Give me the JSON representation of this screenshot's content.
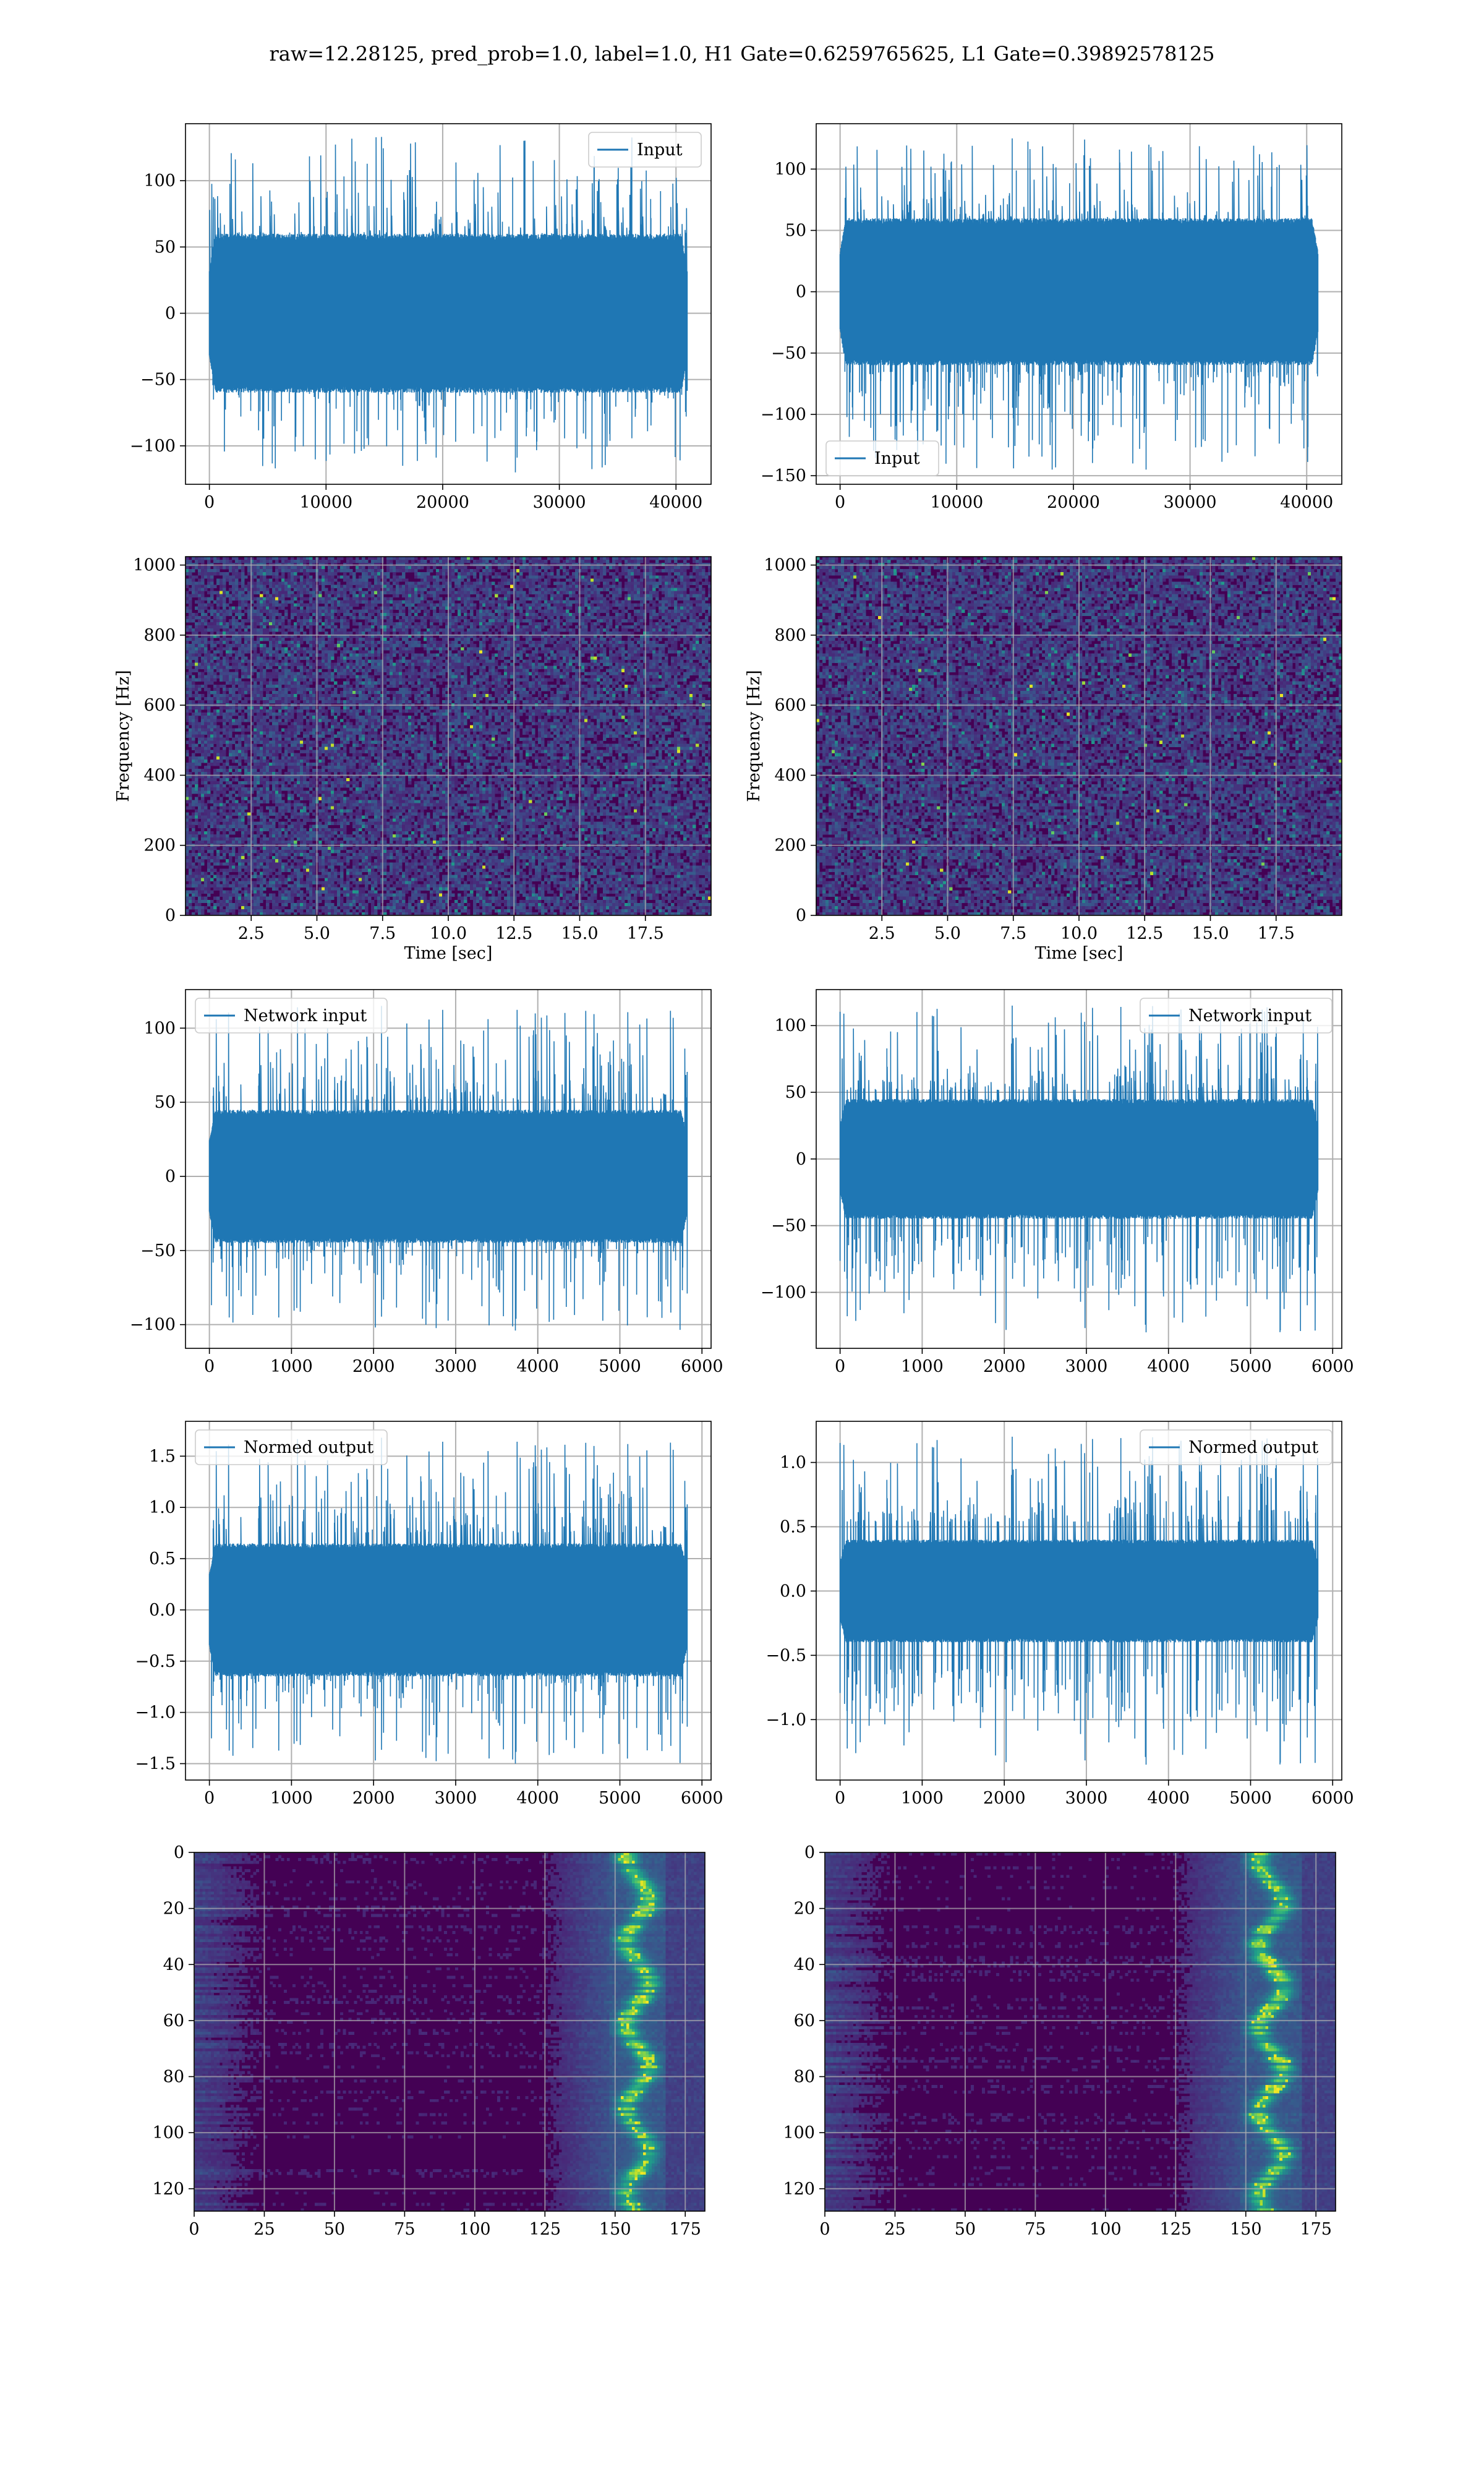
{
  "figure": {
    "suptitle": "raw=12.28125, pred_prob=1.0, label=1.0, H1 Gate=0.6259765625, L1 Gate=0.39892578125"
  },
  "chart_data": [
    {
      "id": "h1-input",
      "type": "line",
      "series": [
        {
          "name": "Input",
          "color": "#1f77b4",
          "x_range": [
            0,
            40960
          ],
          "y_envelope": [
            -60,
            60
          ],
          "y_peaks": [
            -120,
            133
          ],
          "points": 1400,
          "seed": 11
        }
      ],
      "xlim": [
        -2048,
        43008
      ],
      "ylim": [
        -129,
        143
      ],
      "xticks": [
        0,
        10000,
        20000,
        30000,
        40000
      ],
      "xticklabels": [
        "0",
        "10000",
        "20000",
        "30000",
        "40000"
      ],
      "yticks": [
        -100,
        -50,
        0,
        50,
        100
      ],
      "yticklabels": [
        "−100",
        "−50",
        "0",
        "50",
        "100"
      ],
      "legend": "top-right",
      "grid": true,
      "xlabel": "",
      "ylabel": ""
    },
    {
      "id": "l1-input",
      "type": "line",
      "series": [
        {
          "name": "Input",
          "color": "#1f77b4",
          "x_range": [
            0,
            40960
          ],
          "y_envelope": [
            -60,
            60
          ],
          "y_peaks": [
            -145,
            125
          ],
          "points": 1400,
          "seed": 23
        }
      ],
      "xlim": [
        -2048,
        43008
      ],
      "ylim": [
        -157,
        137
      ],
      "xticks": [
        0,
        10000,
        20000,
        30000,
        40000
      ],
      "xticklabels": [
        "0",
        "10000",
        "20000",
        "30000",
        "40000"
      ],
      "yticks": [
        -150,
        -100,
        -50,
        0,
        50,
        100
      ],
      "yticklabels": [
        "−150",
        "−100",
        "−50",
        "0",
        "50",
        "100"
      ],
      "legend": "bottom-left",
      "grid": true,
      "xlabel": "",
      "ylabel": ""
    },
    {
      "id": "h1-spectrogram",
      "type": "heatmap",
      "colormap": "viridis",
      "xlim": [
        0,
        20
      ],
      "ylim": [
        0,
        1024
      ],
      "xticks": [
        2.5,
        5.0,
        7.5,
        10.0,
        12.5,
        15.0,
        17.5
      ],
      "xticklabels": [
        "2.5",
        "5.0",
        "7.5",
        "10.0",
        "12.5",
        "15.0",
        "17.5"
      ],
      "yticks": [
        0,
        200,
        400,
        600,
        800,
        1000
      ],
      "yticklabels": [
        "0",
        "200",
        "400",
        "600",
        "800",
        "1000"
      ],
      "grid": true,
      "xlabel": "Time [sec]",
      "ylabel": "Frequency [Hz]",
      "seed": 31
    },
    {
      "id": "l1-spectrogram",
      "type": "heatmap",
      "colormap": "viridis",
      "xlim": [
        0,
        20
      ],
      "ylim": [
        0,
        1024
      ],
      "xticks": [
        2.5,
        5.0,
        7.5,
        10.0,
        12.5,
        15.0,
        17.5
      ],
      "xticklabels": [
        "2.5",
        "5.0",
        "7.5",
        "10.0",
        "12.5",
        "15.0",
        "17.5"
      ],
      "yticks": [
        0,
        200,
        400,
        600,
        800,
        1000
      ],
      "yticklabels": [
        "0",
        "200",
        "400",
        "600",
        "800",
        "1000"
      ],
      "grid": true,
      "xlabel": "Time [sec]",
      "ylabel": "Frequency [Hz]",
      "seed": 37
    },
    {
      "id": "h1-network-input",
      "type": "line",
      "series": [
        {
          "name": "Network input",
          "color": "#1f77b4",
          "x_range": [
            0,
            5820
          ],
          "y_envelope": [
            -45,
            45
          ],
          "y_peaks": [
            -104,
            115
          ],
          "points": 1400,
          "seed": 41
        }
      ],
      "xlim": [
        -291,
        6111
      ],
      "ylim": [
        -116,
        126
      ],
      "xticks": [
        0,
        1000,
        2000,
        3000,
        4000,
        5000,
        6000
      ],
      "xticklabels": [
        "0",
        "1000",
        "2000",
        "3000",
        "4000",
        "5000",
        "6000"
      ],
      "yticks": [
        -100,
        -50,
        0,
        50,
        100
      ],
      "yticklabels": [
        "−100",
        "−50",
        "0",
        "50",
        "100"
      ],
      "legend": "top-left",
      "grid": true,
      "xlabel": "",
      "ylabel": ""
    },
    {
      "id": "l1-network-input",
      "type": "line",
      "series": [
        {
          "name": "Network input",
          "color": "#1f77b4",
          "x_range": [
            0,
            5820
          ],
          "y_envelope": [
            -45,
            45
          ],
          "y_peaks": [
            -130,
            115
          ],
          "points": 1400,
          "seed": 53
        }
      ],
      "xlim": [
        -291,
        6111
      ],
      "ylim": [
        -142,
        127
      ],
      "xticks": [
        0,
        1000,
        2000,
        3000,
        4000,
        5000,
        6000
      ],
      "xticklabels": [
        "0",
        "1000",
        "2000",
        "3000",
        "4000",
        "5000",
        "6000"
      ],
      "yticks": [
        -100,
        -50,
        0,
        50,
        100
      ],
      "yticklabels": [
        "−100",
        "−50",
        "0",
        "50",
        "100"
      ],
      "legend": "top-right",
      "grid": true,
      "xlabel": "",
      "ylabel": ""
    },
    {
      "id": "h1-normed-output",
      "type": "line",
      "series": [
        {
          "name": "Normed output",
          "color": "#1f77b4",
          "x_range": [
            0,
            5820
          ],
          "y_envelope": [
            -0.65,
            0.65
          ],
          "y_peaks": [
            -1.5,
            1.68
          ],
          "points": 1400,
          "seed": 41
        }
      ],
      "xlim": [
        -291,
        6111
      ],
      "ylim": [
        -1.66,
        1.84
      ],
      "xticks": [
        0,
        1000,
        2000,
        3000,
        4000,
        5000,
        6000
      ],
      "xticklabels": [
        "0",
        "1000",
        "2000",
        "3000",
        "4000",
        "5000",
        "6000"
      ],
      "yticks": [
        -1.5,
        -1.0,
        -0.5,
        0.0,
        0.5,
        1.0,
        1.5
      ],
      "yticklabels": [
        "−1.5",
        "−1.0",
        "−0.5",
        "0.0",
        "0.5",
        "1.0",
        "1.5"
      ],
      "legend": "top-left",
      "grid": true,
      "xlabel": "",
      "ylabel": ""
    },
    {
      "id": "l1-normed-output",
      "type": "line",
      "series": [
        {
          "name": "Normed output",
          "color": "#1f77b4",
          "x_range": [
            0,
            5820
          ],
          "y_envelope": [
            -0.4,
            0.4
          ],
          "y_peaks": [
            -1.35,
            1.2
          ],
          "points": 1400,
          "seed": 53
        }
      ],
      "xlim": [
        -291,
        6111
      ],
      "ylim": [
        -1.47,
        1.32
      ],
      "xticks": [
        0,
        1000,
        2000,
        3000,
        4000,
        5000,
        6000
      ],
      "xticklabels": [
        "0",
        "1000",
        "2000",
        "3000",
        "4000",
        "5000",
        "6000"
      ],
      "yticks": [
        -1.0,
        -0.5,
        0.0,
        0.5,
        1.0
      ],
      "yticklabels": [
        "−1.0",
        "−0.5",
        "0.0",
        "0.5",
        "1.0"
      ],
      "legend": "top-right",
      "grid": true,
      "xlabel": "",
      "ylabel": ""
    },
    {
      "id": "h1-feature-map",
      "type": "heatmap",
      "colormap": "viridis",
      "xlim": [
        0,
        182
      ],
      "ylim": [
        128,
        0
      ],
      "rows": 128,
      "cols": 182,
      "bright_band": [
        148,
        168
      ],
      "xticks": [
        0,
        25,
        50,
        75,
        100,
        125,
        150,
        175
      ],
      "xticklabels": [
        "0",
        "25",
        "50",
        "75",
        "100",
        "125",
        "150",
        "175"
      ],
      "yticks": [
        0,
        20,
        40,
        60,
        80,
        100,
        120
      ],
      "yticklabels": [
        "0",
        "20",
        "40",
        "60",
        "80",
        "100",
        "120"
      ],
      "grid": true,
      "xlabel": "",
      "ylabel": "",
      "seed": 61
    },
    {
      "id": "l1-feature-map",
      "type": "heatmap",
      "colormap": "viridis",
      "xlim": [
        0,
        182
      ],
      "ylim": [
        128,
        0
      ],
      "rows": 128,
      "cols": 182,
      "bright_band": [
        148,
        170
      ],
      "xticks": [
        0,
        25,
        50,
        75,
        100,
        125,
        150,
        175
      ],
      "xticklabels": [
        "0",
        "25",
        "50",
        "75",
        "100",
        "125",
        "150",
        "175"
      ],
      "yticks": [
        0,
        20,
        40,
        60,
        80,
        100,
        120
      ],
      "yticklabels": [
        "0",
        "20",
        "40",
        "60",
        "80",
        "100",
        "120"
      ],
      "grid": true,
      "xlabel": "",
      "ylabel": "",
      "seed": 67
    }
  ]
}
